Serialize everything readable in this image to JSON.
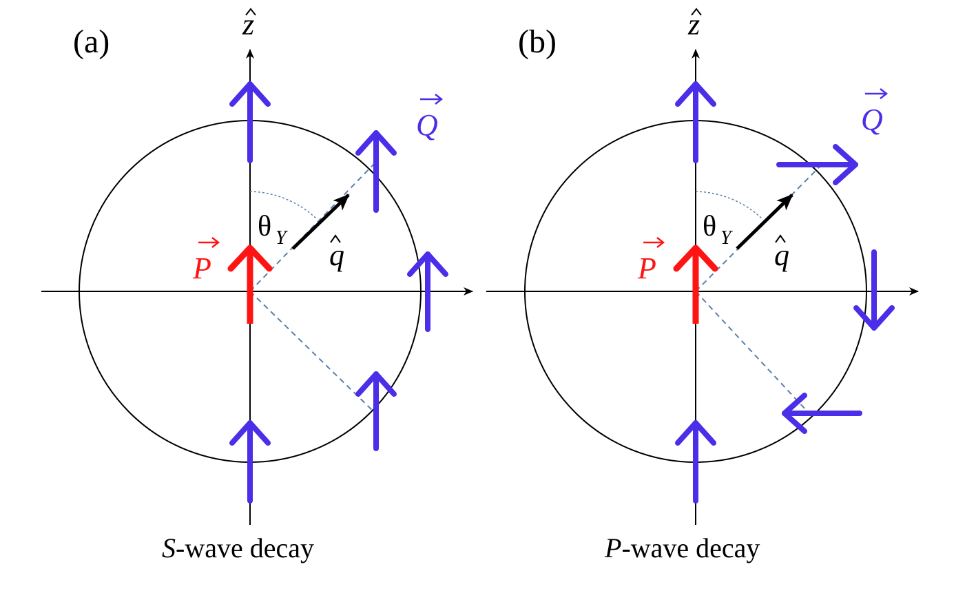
{
  "panels": [
    {
      "label": "(a)",
      "caption_italic": "S",
      "caption_rest": "-wave decay",
      "z_axis_label": "z",
      "theta_label": "θ",
      "theta_subscript": "Y",
      "q_label": "q",
      "P_label": "P",
      "Q_label": "Q"
    },
    {
      "label": "(b)",
      "caption_italic": "P",
      "caption_rest": "-wave decay",
      "z_axis_label": "z",
      "theta_label": "θ",
      "theta_subscript": "Y",
      "q_label": "q",
      "P_label": "P",
      "Q_label": "Q"
    }
  ],
  "colors": {
    "spin_arrow": "#4a2ee8",
    "P_vector": "#ff1414",
    "axes": "#000000",
    "dashed_line": "#5a7fa8"
  }
}
